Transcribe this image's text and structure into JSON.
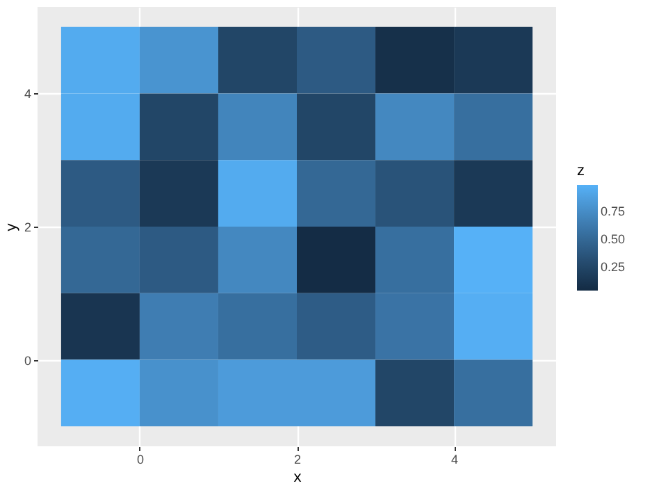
{
  "chart_data": {
    "type": "heatmap",
    "xlabel": "x",
    "ylabel": "y",
    "clabel": "z",
    "x": [
      -0.5,
      0.5,
      1.5,
      2.5,
      3.5,
      4.5
    ],
    "y": [
      4.5,
      3.5,
      2.5,
      1.5,
      0.5,
      -0.5
    ],
    "cells": [
      [
        0.95,
        0.8,
        0.25,
        0.4,
        0.08,
        0.15
      ],
      [
        0.95,
        0.25,
        0.7,
        0.25,
        0.72,
        0.55
      ],
      [
        0.4,
        0.15,
        0.95,
        0.5,
        0.35,
        0.15
      ],
      [
        0.5,
        0.4,
        0.72,
        0.05,
        0.55,
        0.99
      ],
      [
        0.12,
        0.65,
        0.55,
        0.42,
        0.58,
        0.97
      ],
      [
        0.97,
        0.78,
        0.85,
        0.85,
        0.25,
        0.55
      ]
    ],
    "xlim": [
      -1.3,
      5.3
    ],
    "xticks": [
      0,
      2,
      4
    ],
    "ylim": [
      -1.3,
      5.3
    ],
    "yticks": [
      0,
      2,
      4
    ],
    "clim": [
      0.04,
      0.99
    ],
    "cticks": [
      0.25,
      {
        "value": 0.5,
        "label": "0.50"
      },
      0.75
    ],
    "colors": [
      "#132b43",
      "#56b1f7"
    ],
    "grid": true
  }
}
